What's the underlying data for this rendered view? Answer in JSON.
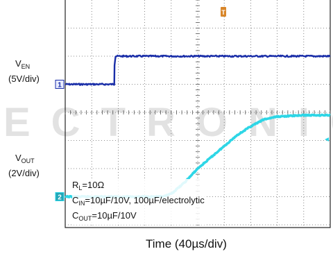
{
  "chart_data": {
    "type": "line",
    "xlabel": "Time (40µs/div)",
    "channels": [
      {
        "name": "V",
        "sub": "EN",
        "scale": "(5V/div)",
        "marker": "1",
        "color": "#1a2ea8",
        "x_div": [
          0,
          1.0,
          1.85,
          1.86,
          1.9,
          2.0,
          3,
          4,
          5,
          6,
          7,
          8,
          9,
          10
        ],
        "y_div": [
          -3.0,
          -3.0,
          -3.0,
          -2.3,
          -2.0,
          -2.0,
          -2.0,
          -2.0,
          -2.0,
          -2.0,
          -2.0,
          -2.0,
          -2.0,
          -2.0
        ]
      },
      {
        "name": "V",
        "sub": "OUT",
        "scale": "(2V/div)",
        "marker": "2",
        "color": "#2ed6e6",
        "x_div": [
          0,
          1,
          2,
          3,
          3.7,
          4.0,
          4.5,
          5.0,
          5.5,
          6.0,
          6.5,
          7.0,
          7.5,
          8,
          9,
          10
        ],
        "y_div": [
          -7.0,
          -7.0,
          -7.0,
          -7.0,
          -7.0,
          -6.9,
          -6.5,
          -6.0,
          -5.6,
          -5.2,
          -4.8,
          -4.5,
          -4.25,
          -4.15,
          -4.1,
          -4.1
        ]
      }
    ],
    "grid": true,
    "divisions": {
      "x": 10,
      "y": 8
    },
    "trigger_marker": "T"
  },
  "conditions": {
    "rl": {
      "pre": "R",
      "sub": "L",
      "post": "=10Ω"
    },
    "cin": {
      "pre": "C",
      "sub": "IN",
      "post": "=10µF/10V, 100µF/electrolytic"
    },
    "cout": {
      "pre": "C",
      "sub": "OUT",
      "post": "=10µF/10V"
    }
  },
  "watermark": "ECTRONIC"
}
